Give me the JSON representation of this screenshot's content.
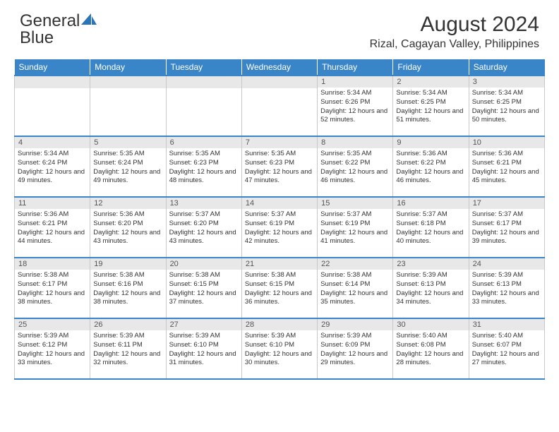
{
  "logo": {
    "text1": "General",
    "text2": "Blue"
  },
  "header": {
    "month_title": "August 2024",
    "location": "Rizal, Cagayan Valley, Philippines"
  },
  "style": {
    "header_bg": "#3a85c7",
    "header_text": "#ffffff",
    "daynum_bg": "#e8e8e8",
    "border_color": "#c8c8c8",
    "accent_rule": "#3a85c7",
    "body_text": "#333333"
  },
  "day_headers": [
    "Sunday",
    "Monday",
    "Tuesday",
    "Wednesday",
    "Thursday",
    "Friday",
    "Saturday"
  ],
  "weeks": [
    [
      null,
      null,
      null,
      null,
      {
        "n": "1",
        "sr": "5:34 AM",
        "ss": "6:26 PM",
        "dl": "12 hours and 52 minutes."
      },
      {
        "n": "2",
        "sr": "5:34 AM",
        "ss": "6:25 PM",
        "dl": "12 hours and 51 minutes."
      },
      {
        "n": "3",
        "sr": "5:34 AM",
        "ss": "6:25 PM",
        "dl": "12 hours and 50 minutes."
      }
    ],
    [
      {
        "n": "4",
        "sr": "5:34 AM",
        "ss": "6:24 PM",
        "dl": "12 hours and 49 minutes."
      },
      {
        "n": "5",
        "sr": "5:35 AM",
        "ss": "6:24 PM",
        "dl": "12 hours and 49 minutes."
      },
      {
        "n": "6",
        "sr": "5:35 AM",
        "ss": "6:23 PM",
        "dl": "12 hours and 48 minutes."
      },
      {
        "n": "7",
        "sr": "5:35 AM",
        "ss": "6:23 PM",
        "dl": "12 hours and 47 minutes."
      },
      {
        "n": "8",
        "sr": "5:35 AM",
        "ss": "6:22 PM",
        "dl": "12 hours and 46 minutes."
      },
      {
        "n": "9",
        "sr": "5:36 AM",
        "ss": "6:22 PM",
        "dl": "12 hours and 46 minutes."
      },
      {
        "n": "10",
        "sr": "5:36 AM",
        "ss": "6:21 PM",
        "dl": "12 hours and 45 minutes."
      }
    ],
    [
      {
        "n": "11",
        "sr": "5:36 AM",
        "ss": "6:21 PM",
        "dl": "12 hours and 44 minutes."
      },
      {
        "n": "12",
        "sr": "5:36 AM",
        "ss": "6:20 PM",
        "dl": "12 hours and 43 minutes."
      },
      {
        "n": "13",
        "sr": "5:37 AM",
        "ss": "6:20 PM",
        "dl": "12 hours and 43 minutes."
      },
      {
        "n": "14",
        "sr": "5:37 AM",
        "ss": "6:19 PM",
        "dl": "12 hours and 42 minutes."
      },
      {
        "n": "15",
        "sr": "5:37 AM",
        "ss": "6:19 PM",
        "dl": "12 hours and 41 minutes."
      },
      {
        "n": "16",
        "sr": "5:37 AM",
        "ss": "6:18 PM",
        "dl": "12 hours and 40 minutes."
      },
      {
        "n": "17",
        "sr": "5:37 AM",
        "ss": "6:17 PM",
        "dl": "12 hours and 39 minutes."
      }
    ],
    [
      {
        "n": "18",
        "sr": "5:38 AM",
        "ss": "6:17 PM",
        "dl": "12 hours and 38 minutes."
      },
      {
        "n": "19",
        "sr": "5:38 AM",
        "ss": "6:16 PM",
        "dl": "12 hours and 38 minutes."
      },
      {
        "n": "20",
        "sr": "5:38 AM",
        "ss": "6:15 PM",
        "dl": "12 hours and 37 minutes."
      },
      {
        "n": "21",
        "sr": "5:38 AM",
        "ss": "6:15 PM",
        "dl": "12 hours and 36 minutes."
      },
      {
        "n": "22",
        "sr": "5:38 AM",
        "ss": "6:14 PM",
        "dl": "12 hours and 35 minutes."
      },
      {
        "n": "23",
        "sr": "5:39 AM",
        "ss": "6:13 PM",
        "dl": "12 hours and 34 minutes."
      },
      {
        "n": "24",
        "sr": "5:39 AM",
        "ss": "6:13 PM",
        "dl": "12 hours and 33 minutes."
      }
    ],
    [
      {
        "n": "25",
        "sr": "5:39 AM",
        "ss": "6:12 PM",
        "dl": "12 hours and 33 minutes."
      },
      {
        "n": "26",
        "sr": "5:39 AM",
        "ss": "6:11 PM",
        "dl": "12 hours and 32 minutes."
      },
      {
        "n": "27",
        "sr": "5:39 AM",
        "ss": "6:10 PM",
        "dl": "12 hours and 31 minutes."
      },
      {
        "n": "28",
        "sr": "5:39 AM",
        "ss": "6:10 PM",
        "dl": "12 hours and 30 minutes."
      },
      {
        "n": "29",
        "sr": "5:39 AM",
        "ss": "6:09 PM",
        "dl": "12 hours and 29 minutes."
      },
      {
        "n": "30",
        "sr": "5:40 AM",
        "ss": "6:08 PM",
        "dl": "12 hours and 28 minutes."
      },
      {
        "n": "31",
        "sr": "5:40 AM",
        "ss": "6:07 PM",
        "dl": "12 hours and 27 minutes."
      }
    ]
  ]
}
